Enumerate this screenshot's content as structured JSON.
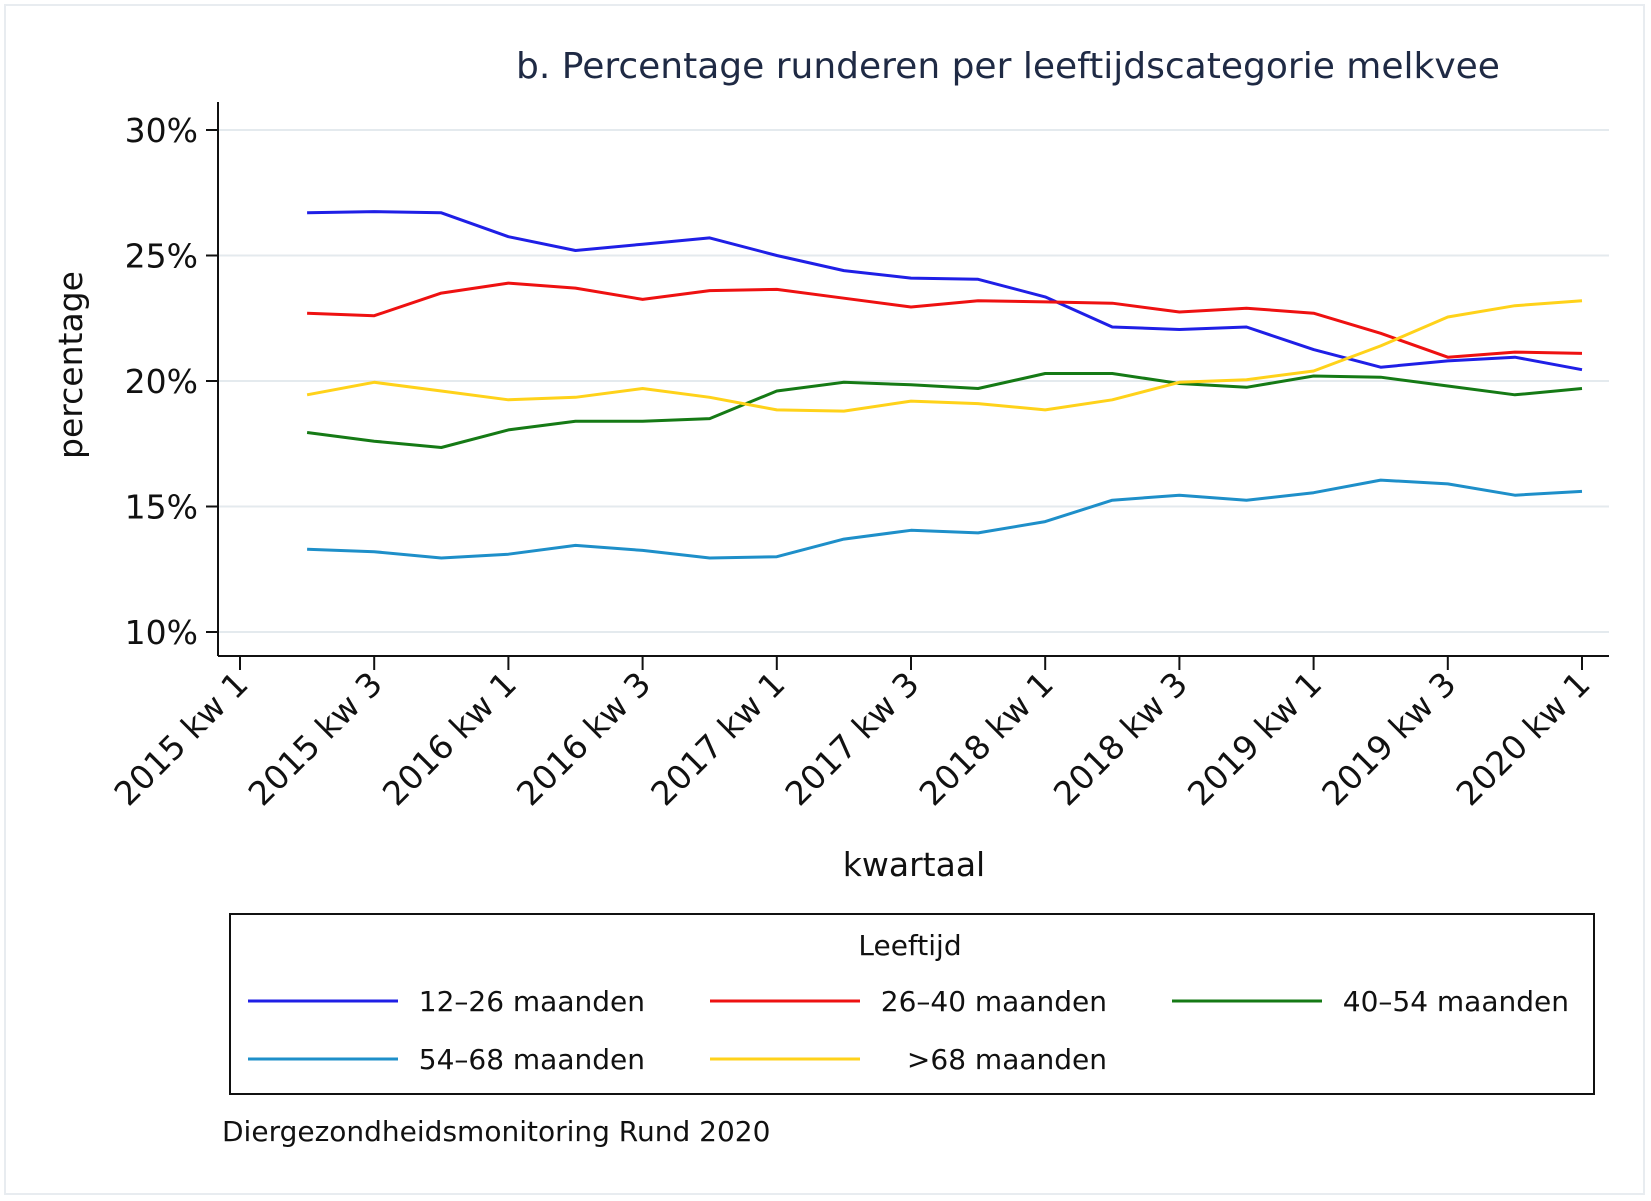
{
  "chart_data": {
    "type": "line",
    "title": "b. Percentage runderen per leeftijdscategorie melkvee",
    "xlabel": "kwartaal",
    "ylabel": "percentage",
    "ylim": [
      10,
      30
    ],
    "yticks": [
      "10%",
      "15%",
      "20%",
      "25%",
      "30%"
    ],
    "ytick_values": [
      10,
      15,
      20,
      25,
      30
    ],
    "xticks": [
      "2015 kw 1",
      "2015 kw 3",
      "2016 kw 1",
      "2016 kw 3",
      "2017 kw 1",
      "2017 kw 3",
      "2018 kw 1",
      "2018 kw 3",
      "2019 kw 1",
      "2019 kw 3",
      "2020 kw 1"
    ],
    "x_quarters": [
      "2015 kw 2",
      "2015 kw 3",
      "2015 kw 4",
      "2016 kw 1",
      "2016 kw 2",
      "2016 kw 3",
      "2016 kw 4",
      "2017 kw 1",
      "2017 kw 2",
      "2017 kw 3",
      "2017 kw 4",
      "2018 kw 1",
      "2018 kw 2",
      "2018 kw 3",
      "2018 kw 4",
      "2019 kw 1",
      "2019 kw 2",
      "2019 kw 3",
      "2019 kw 4",
      "2020 kw 1"
    ],
    "grid": true,
    "legend_position": "bottom",
    "legend_title": "Leeftijd",
    "series": [
      {
        "name": "12–26 maanden",
        "color": "#1f1fe6",
        "values": [
          26.7,
          26.75,
          26.7,
          25.75,
          25.2,
          25.45,
          25.7,
          25.0,
          24.4,
          24.1,
          24.05,
          23.35,
          22.15,
          22.05,
          22.15,
          21.25,
          20.55,
          20.8,
          20.95,
          20.45
        ]
      },
      {
        "name": "26–40 maanden",
        "color": "#ee1111",
        "values": [
          22.7,
          22.6,
          23.5,
          23.9,
          23.7,
          23.25,
          23.6,
          23.65,
          23.3,
          22.95,
          23.2,
          23.15,
          23.1,
          22.75,
          22.9,
          22.7,
          21.9,
          20.95,
          21.15,
          21.1
        ]
      },
      {
        "name": "40–54 maanden",
        "color": "#157a15",
        "values": [
          17.95,
          17.6,
          17.35,
          18.05,
          18.4,
          18.4,
          18.5,
          19.6,
          19.95,
          19.85,
          19.7,
          20.3,
          20.3,
          19.9,
          19.75,
          20.2,
          20.15,
          19.8,
          19.45,
          19.7
        ]
      },
      {
        "name": "54–68 maanden",
        "color": "#1e8fc9",
        "values": [
          13.3,
          13.2,
          12.95,
          13.1,
          13.45,
          13.25,
          12.95,
          13.0,
          13.7,
          14.05,
          13.95,
          14.4,
          15.25,
          15.45,
          15.25,
          15.55,
          16.05,
          15.9,
          15.45,
          15.6
        ]
      },
      {
        "name": ">68 maanden",
        "color": "#ffd21a",
        "values": [
          19.45,
          19.95,
          19.6,
          19.25,
          19.35,
          19.7,
          19.35,
          18.85,
          18.8,
          19.2,
          19.1,
          18.85,
          19.25,
          19.95,
          20.05,
          20.4,
          21.4,
          22.55,
          23.0,
          23.2
        ]
      }
    ]
  },
  "source_note": "Diergezondheidsmonitoring Rund 2020"
}
